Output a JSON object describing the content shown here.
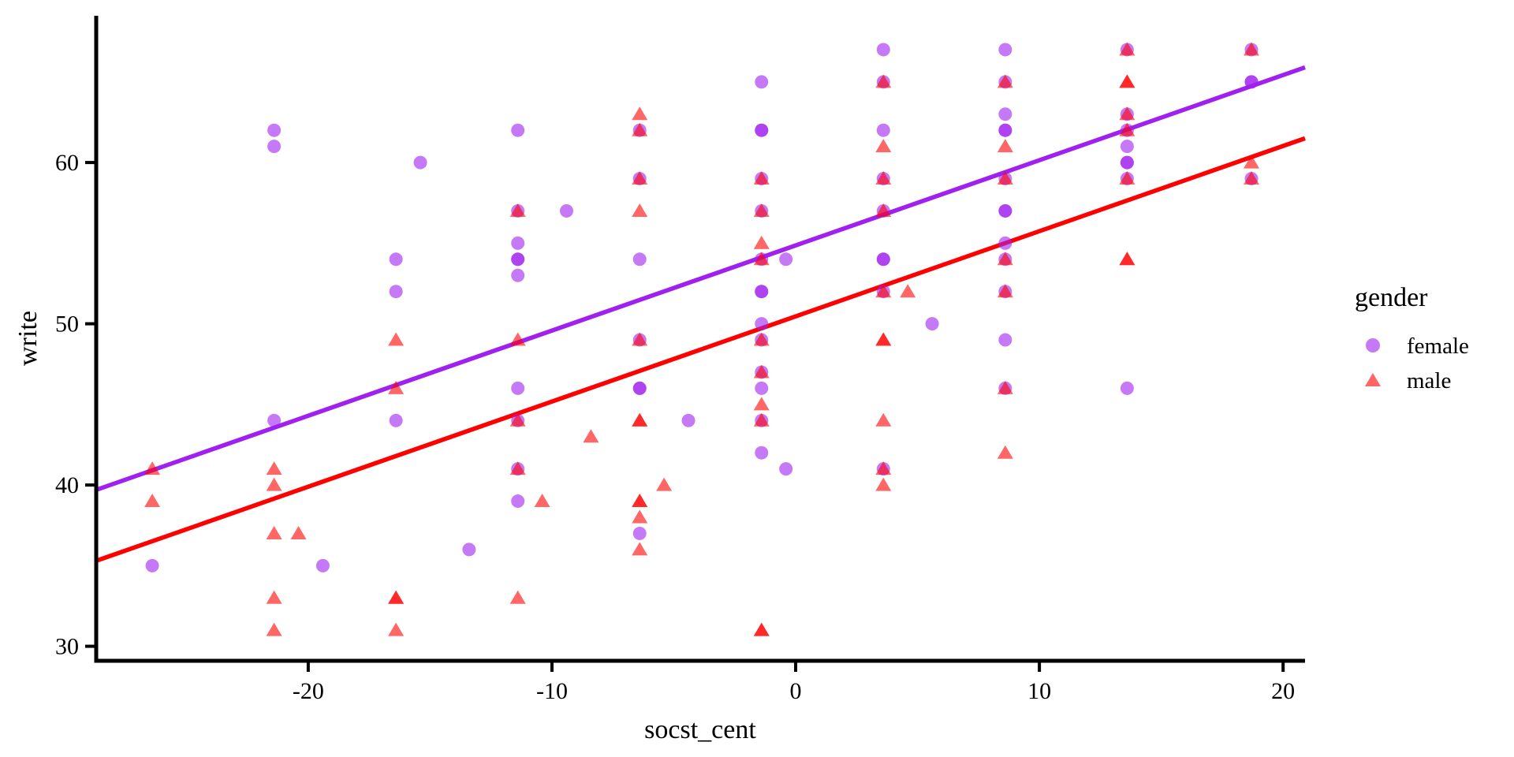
{
  "chart_data": {
    "type": "scatter",
    "title": "",
    "xlabel": "socst_cent",
    "ylabel": "write",
    "grid": false,
    "legend_position": "right",
    "xlim": [
      -28.7,
      20.9
    ],
    "ylim": [
      29.1,
      69.1
    ],
    "x_ticks": [
      -20,
      -10,
      0,
      10,
      20
    ],
    "x_tick_labels": [
      "-20",
      "-10",
      "0",
      "10",
      "20"
    ],
    "y_ticks": [
      30,
      40,
      50,
      60
    ],
    "y_tick_labels": [
      "30",
      "40",
      "50",
      "60"
    ],
    "legend": {
      "title": "gender",
      "entries": [
        {
          "label": "female",
          "marker": "circle",
          "color": "#A020F0"
        },
        {
          "label": "male",
          "marker": "triangle",
          "color": "#FF0000"
        }
      ]
    },
    "point_opacity": 0.6,
    "series": [
      {
        "name": "female",
        "marker": "circle",
        "color": "#A020F0",
        "points": [
          [
            -26.4,
            35
          ],
          [
            -21.4,
            62
          ],
          [
            -21.4,
            61
          ],
          [
            -21.4,
            44
          ],
          [
            -19.4,
            35
          ],
          [
            -16.4,
            54
          ],
          [
            -16.4,
            52
          ],
          [
            -16.4,
            44
          ],
          [
            -15.4,
            60
          ],
          [
            -13.4,
            36
          ],
          [
            -11.4,
            62
          ],
          [
            -11.4,
            57
          ],
          [
            -11.4,
            55
          ],
          [
            -11.4,
            54
          ],
          [
            -11.4,
            54
          ],
          [
            -11.4,
            53
          ],
          [
            -11.4,
            46
          ],
          [
            -11.4,
            44
          ],
          [
            -11.4,
            41
          ],
          [
            -11.4,
            39
          ],
          [
            -9.4,
            57
          ],
          [
            -6.4,
            62
          ],
          [
            -6.4,
            59
          ],
          [
            -6.4,
            54
          ],
          [
            -6.4,
            49
          ],
          [
            -6.4,
            46
          ],
          [
            -6.4,
            46
          ],
          [
            -6.4,
            37
          ],
          [
            -4.4,
            44
          ],
          [
            -1.4,
            65
          ],
          [
            -1.4,
            62
          ],
          [
            -1.4,
            62
          ],
          [
            -1.4,
            59
          ],
          [
            -1.4,
            57
          ],
          [
            -1.4,
            54
          ],
          [
            -1.4,
            52
          ],
          [
            -1.4,
            52
          ],
          [
            -1.4,
            50
          ],
          [
            -1.4,
            49
          ],
          [
            -1.4,
            47
          ],
          [
            -1.4,
            46
          ],
          [
            -1.4,
            44
          ],
          [
            -1.4,
            42
          ],
          [
            -0.4,
            54
          ],
          [
            -0.4,
            41
          ],
          [
            3.6,
            67
          ],
          [
            3.6,
            65
          ],
          [
            3.6,
            62
          ],
          [
            3.6,
            59
          ],
          [
            3.6,
            57
          ],
          [
            3.6,
            54
          ],
          [
            3.6,
            54
          ],
          [
            3.6,
            52
          ],
          [
            3.6,
            41
          ],
          [
            5.6,
            50
          ],
          [
            8.6,
            67
          ],
          [
            8.6,
            65
          ],
          [
            8.6,
            63
          ],
          [
            8.6,
            62
          ],
          [
            8.6,
            62
          ],
          [
            8.6,
            59
          ],
          [
            8.6,
            57
          ],
          [
            8.6,
            57
          ],
          [
            8.6,
            55
          ],
          [
            8.6,
            54
          ],
          [
            8.6,
            52
          ],
          [
            8.6,
            49
          ],
          [
            8.6,
            46
          ],
          [
            13.6,
            67
          ],
          [
            13.6,
            63
          ],
          [
            13.6,
            62
          ],
          [
            13.6,
            61
          ],
          [
            13.6,
            60
          ],
          [
            13.6,
            60
          ],
          [
            13.6,
            59
          ],
          [
            13.6,
            46
          ],
          [
            18.7,
            67
          ],
          [
            18.7,
            65
          ],
          [
            18.7,
            65
          ],
          [
            18.7,
            59
          ]
        ]
      },
      {
        "name": "male",
        "marker": "triangle",
        "color": "#FF0000",
        "points": [
          [
            -26.4,
            41
          ],
          [
            -26.4,
            39
          ],
          [
            -21.4,
            41
          ],
          [
            -21.4,
            40
          ],
          [
            -21.4,
            37
          ],
          [
            -21.4,
            33
          ],
          [
            -21.4,
            31
          ],
          [
            -20.4,
            37
          ],
          [
            -16.4,
            49
          ],
          [
            -16.4,
            46
          ],
          [
            -16.4,
            33
          ],
          [
            -16.4,
            33
          ],
          [
            -16.4,
            31
          ],
          [
            -11.4,
            57
          ],
          [
            -11.4,
            49
          ],
          [
            -11.4,
            44
          ],
          [
            -11.4,
            41
          ],
          [
            -11.4,
            33
          ],
          [
            -10.4,
            39
          ],
          [
            -8.4,
            43
          ],
          [
            -6.4,
            63
          ],
          [
            -6.4,
            62
          ],
          [
            -6.4,
            59
          ],
          [
            -6.4,
            57
          ],
          [
            -6.4,
            49
          ],
          [
            -6.4,
            44
          ],
          [
            -6.4,
            44
          ],
          [
            -6.4,
            39
          ],
          [
            -6.4,
            39
          ],
          [
            -6.4,
            38
          ],
          [
            -6.4,
            36
          ],
          [
            -5.4,
            40
          ],
          [
            -1.4,
            59
          ],
          [
            -1.4,
            57
          ],
          [
            -1.4,
            55
          ],
          [
            -1.4,
            54
          ],
          [
            -1.4,
            49
          ],
          [
            -1.4,
            47
          ],
          [
            -1.4,
            45
          ],
          [
            -1.4,
            44
          ],
          [
            -1.4,
            31
          ],
          [
            -1.4,
            31
          ],
          [
            3.6,
            65
          ],
          [
            3.6,
            61
          ],
          [
            3.6,
            59
          ],
          [
            3.6,
            57
          ],
          [
            3.6,
            52
          ],
          [
            3.6,
            49
          ],
          [
            3.6,
            49
          ],
          [
            3.6,
            44
          ],
          [
            3.6,
            41
          ],
          [
            3.6,
            40
          ],
          [
            4.6,
            52
          ],
          [
            8.6,
            65
          ],
          [
            8.6,
            61
          ],
          [
            8.6,
            59
          ],
          [
            8.6,
            54
          ],
          [
            8.6,
            52
          ],
          [
            8.6,
            46
          ],
          [
            8.6,
            42
          ],
          [
            13.6,
            67
          ],
          [
            13.6,
            65
          ],
          [
            13.6,
            65
          ],
          [
            13.6,
            63
          ],
          [
            13.6,
            62
          ],
          [
            13.6,
            59
          ],
          [
            13.6,
            54
          ],
          [
            13.6,
            54
          ],
          [
            18.7,
            67
          ],
          [
            18.7,
            60
          ],
          [
            18.7,
            59
          ]
        ]
      }
    ],
    "fit_lines": [
      {
        "name": "female",
        "color": "#A020F0",
        "x1": -28.7,
        "y1": 39.7,
        "x2": 20.9,
        "y2": 65.9
      },
      {
        "name": "male",
        "color": "#FF0000",
        "x1": -28.7,
        "y1": 35.3,
        "x2": 20.9,
        "y2": 61.5
      }
    ]
  }
}
